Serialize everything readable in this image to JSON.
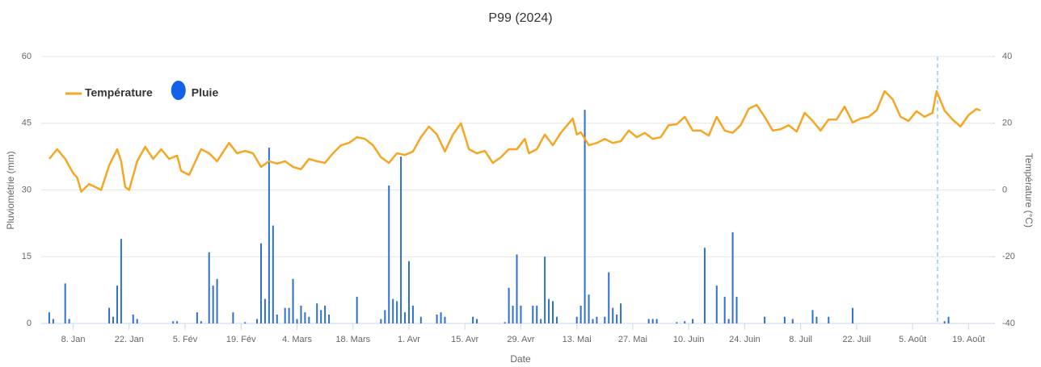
{
  "chart_data": {
    "type": "bar",
    "title": "P99 (2024)",
    "xlabel": "Date",
    "ylabel": "Pluviométrie (mm)",
    "y2label": "Température (°C)",
    "legend": "top-left",
    "grid": true,
    "xlim": [
      0,
      238
    ],
    "xticks": [
      {
        "value": 8,
        "label": "8. Jan"
      },
      {
        "value": 22,
        "label": "22. Jan"
      },
      {
        "value": 36,
        "label": "5. Fév"
      },
      {
        "value": 50,
        "label": "19. Fév"
      },
      {
        "value": 64,
        "label": "4. Mars"
      },
      {
        "value": 78,
        "label": "18. Mars"
      },
      {
        "value": 92,
        "label": "1. Avr"
      },
      {
        "value": 106,
        "label": "15. Avr"
      },
      {
        "value": 120,
        "label": "29. Avr"
      },
      {
        "value": 134,
        "label": "13. Mai"
      },
      {
        "value": 148,
        "label": "27. Mai"
      },
      {
        "value": 162,
        "label": "10. Juin"
      },
      {
        "value": 176,
        "label": "24. Juin"
      },
      {
        "value": 190,
        "label": "8. Juil"
      },
      {
        "value": 204,
        "label": "22. Juil"
      },
      {
        "value": 218,
        "label": "5. Août"
      },
      {
        "value": 232,
        "label": "19. Août"
      }
    ],
    "ylim": [
      0,
      60
    ],
    "yticks": [
      0,
      15,
      30,
      45,
      60
    ],
    "y2lim": [
      -40,
      40
    ],
    "y2ticks": [
      -40,
      -20,
      0,
      20,
      40
    ],
    "series": [
      {
        "name": "Pluie",
        "type": "bar",
        "axis": "y",
        "color": "#2f6fd0",
        "legend_color": "#1460e8",
        "x": [
          2,
          3,
          6,
          7,
          17,
          18,
          19,
          20,
          23,
          24,
          33,
          34,
          39,
          40,
          42,
          43,
          44,
          48,
          51,
          54,
          55,
          56,
          57,
          58,
          59,
          61,
          62,
          63,
          64,
          65,
          66,
          67,
          69,
          70,
          71,
          72,
          79,
          85,
          86,
          87,
          88,
          89,
          90,
          91,
          92,
          93,
          95,
          99,
          100,
          101,
          108,
          109,
          116,
          117,
          118,
          119,
          120,
          123,
          124,
          125,
          126,
          127,
          128,
          129,
          134,
          135,
          136,
          137,
          138,
          139,
          141,
          142,
          143,
          144,
          145,
          152,
          153,
          154,
          159,
          161,
          163,
          166,
          169,
          171,
          172,
          173,
          174,
          181,
          186,
          188,
          193,
          194,
          197,
          203,
          226,
          227
        ],
        "values": [
          2.5,
          1,
          9,
          1,
          3.5,
          1.5,
          8.5,
          19,
          2,
          1,
          0.5,
          0.5,
          2.5,
          0.5,
          16,
          8.5,
          10,
          2.5,
          0.3,
          1,
          18,
          5.5,
          39.5,
          22,
          2,
          3.5,
          3.5,
          10,
          1,
          4,
          2.5,
          1.5,
          4.5,
          3,
          4,
          2,
          6,
          1,
          3,
          31,
          5.5,
          5,
          37.5,
          2.5,
          14,
          4,
          1.5,
          2,
          2.5,
          1.5,
          1.5,
          1,
          0.3,
          8,
          4,
          15.5,
          4,
          4,
          4,
          1,
          15,
          5.5,
          5,
          1.5,
          1.5,
          4,
          48,
          6.5,
          1,
          1.5,
          1.5,
          11.5,
          3.5,
          2,
          4.5,
          1,
          1,
          1,
          0.3,
          0.5,
          1,
          17,
          8.5,
          6,
          1,
          20.5,
          6,
          1.5,
          1.5,
          1,
          3,
          1.5,
          1.5,
          3.5,
          0.5,
          1.5
        ]
      },
      {
        "name": "Température",
        "type": "line",
        "axis": "y2",
        "color": "#f5a623",
        "x": [
          2,
          4,
          6,
          8,
          9,
          10,
          12,
          15,
          17,
          19,
          20,
          21,
          22,
          24,
          26,
          28,
          30,
          32,
          34,
          35,
          37,
          40,
          42,
          44,
          47,
          49,
          51,
          53,
          55,
          57,
          59,
          61,
          63,
          65,
          67,
          69,
          71,
          73,
          75,
          77,
          79,
          81,
          83,
          85,
          87,
          89,
          91,
          93,
          95,
          97,
          99,
          101,
          103,
          105,
          107,
          109,
          111,
          113,
          115,
          117,
          119,
          121,
          122,
          124,
          126,
          128,
          130,
          133,
          134,
          135,
          137,
          139,
          141,
          143,
          145,
          147,
          149,
          151,
          153,
          155,
          157,
          159,
          161,
          163,
          165,
          167,
          169,
          171,
          173,
          175,
          177,
          179,
          181,
          183,
          185,
          187,
          189,
          191,
          193,
          195,
          197,
          199,
          201,
          203,
          205,
          207,
          209,
          211,
          213,
          215,
          217,
          219,
          221,
          223,
          224,
          226,
          228,
          230,
          232,
          234,
          235
        ],
        "values": [
          9.3,
          12.2,
          9.3,
          5,
          3.7,
          -0.5,
          1.8,
          0,
          7.4,
          12.2,
          8.6,
          0.9,
          0,
          8.6,
          12.9,
          9.3,
          12.2,
          9.3,
          10.3,
          5.7,
          4.5,
          12.2,
          11,
          8.6,
          14.1,
          11,
          11.7,
          11,
          6.9,
          8.6,
          7.9,
          8.6,
          6.9,
          6.2,
          9.3,
          8.6,
          8.1,
          11,
          13.4,
          14.1,
          15.8,
          15.3,
          13.4,
          9.8,
          8.1,
          11,
          10.5,
          11.5,
          15.8,
          19,
          16.6,
          11.5,
          16.6,
          20,
          12.2,
          11,
          11.7,
          8.1,
          9.8,
          12.2,
          12.2,
          15.3,
          11,
          12.2,
          16.6,
          13.4,
          17.1,
          21.4,
          16.6,
          17.3,
          13.4,
          14.1,
          15.3,
          14.1,
          14.6,
          17.8,
          15.8,
          17.1,
          15.3,
          15.8,
          19.4,
          19.7,
          21.9,
          17.8,
          17.8,
          16.3,
          21.9,
          17.8,
          17.1,
          19.4,
          24.3,
          25.5,
          21.9,
          17.8,
          18.2,
          19.4,
          17.5,
          23.1,
          20.7,
          17.8,
          21.1,
          21.1,
          25,
          20.2,
          21.4,
          21.9,
          23.8,
          29.6,
          27.2,
          21.9,
          20.7,
          23.6,
          21.9,
          23.1,
          29.6,
          23.8,
          21.1,
          19,
          22.4,
          24.3,
          23.8
        ]
      }
    ]
  }
}
